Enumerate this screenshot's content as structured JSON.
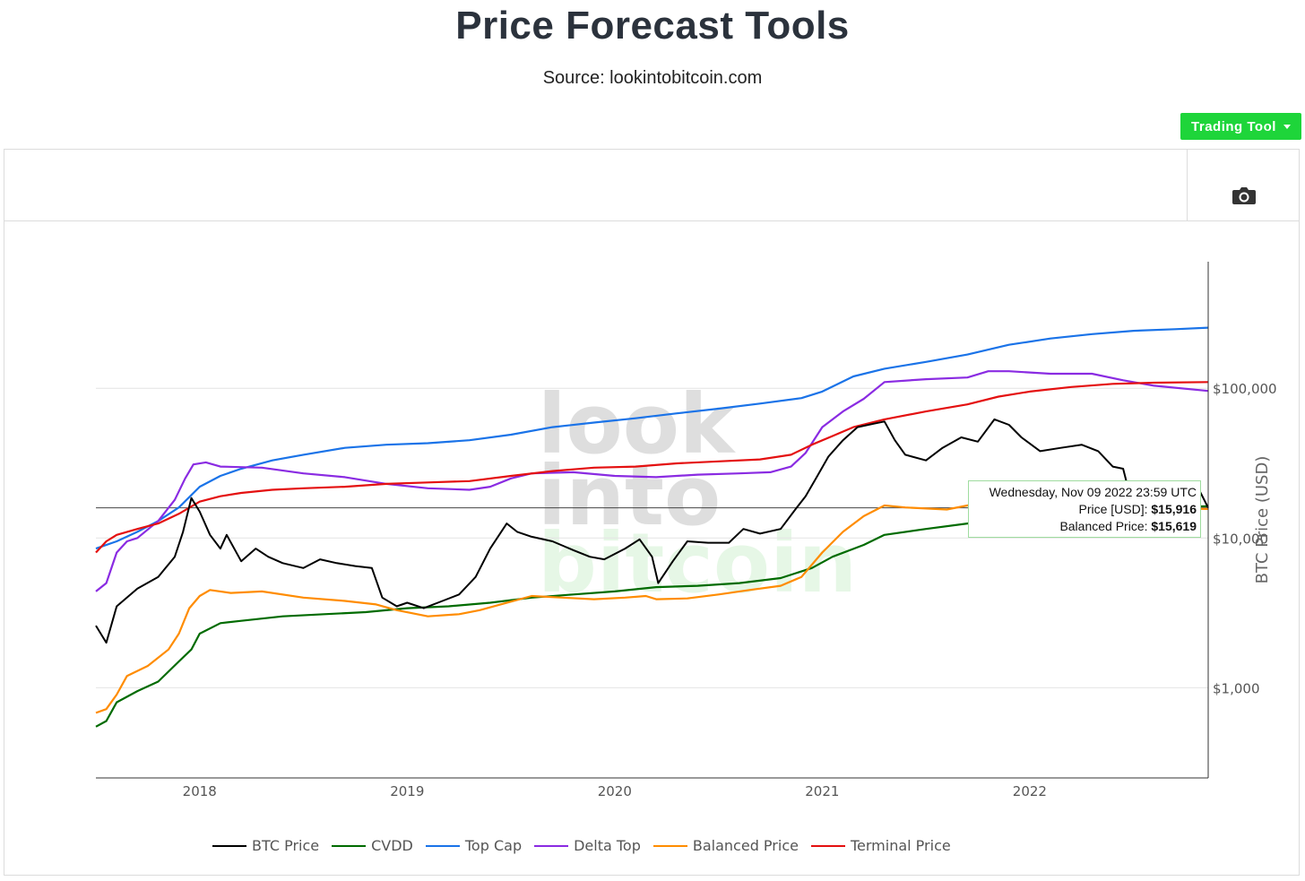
{
  "header": {
    "title": "Price Forecast Tools",
    "subtitle": "Source: lookintobitcoin.com"
  },
  "toolbar": {
    "trading_tool_label": "Trading Tool",
    "camera_icon": "camera-icon"
  },
  "watermark": [
    "look",
    "into",
    "bitcoin"
  ],
  "tooltip": {
    "date": "Wednesday, Nov 09 2022 23:59 UTC",
    "price_label": "Price [USD]:",
    "price_value": "$15,916",
    "balanced_label": "Balanced Price:",
    "balanced_value": "$15,619"
  },
  "chart_data": {
    "type": "line",
    "ylabel": "BTC Price (USD)",
    "yscale": "log",
    "ylim": [
      250,
      700000
    ],
    "xlim": [
      2017.5,
      2022.86
    ],
    "xticks": [
      {
        "value": 2018,
        "label": "2018"
      },
      {
        "value": 2019,
        "label": "2019"
      },
      {
        "value": 2020,
        "label": "2020"
      },
      {
        "value": 2021,
        "label": "2021"
      },
      {
        "value": 2022,
        "label": "2022"
      }
    ],
    "yticks": [
      {
        "value": 1000,
        "label": "$1,000"
      },
      {
        "value": 10000,
        "label": "$10,000"
      },
      {
        "value": 100000,
        "label": "$100,000"
      }
    ],
    "crosshair_y": 15916,
    "series": [
      {
        "name": "BTC Price",
        "color": "#000000",
        "points": [
          [
            2017.5,
            2600
          ],
          [
            2017.55,
            2000
          ],
          [
            2017.6,
            3500
          ],
          [
            2017.7,
            4600
          ],
          [
            2017.8,
            5500
          ],
          [
            2017.88,
            7500
          ],
          [
            2017.92,
            11000
          ],
          [
            2017.96,
            18500
          ],
          [
            2018.0,
            15000
          ],
          [
            2018.05,
            10500
          ],
          [
            2018.1,
            8500
          ],
          [
            2018.13,
            10500
          ],
          [
            2018.2,
            7000
          ],
          [
            2018.27,
            8500
          ],
          [
            2018.33,
            7500
          ],
          [
            2018.4,
            6800
          ],
          [
            2018.5,
            6300
          ],
          [
            2018.58,
            7200
          ],
          [
            2018.66,
            6800
          ],
          [
            2018.75,
            6500
          ],
          [
            2018.83,
            6300
          ],
          [
            2018.88,
            4000
          ],
          [
            2018.95,
            3500
          ],
          [
            2019.0,
            3700
          ],
          [
            2019.08,
            3400
          ],
          [
            2019.17,
            3800
          ],
          [
            2019.25,
            4200
          ],
          [
            2019.33,
            5500
          ],
          [
            2019.4,
            8500
          ],
          [
            2019.48,
            12500
          ],
          [
            2019.53,
            11000
          ],
          [
            2019.6,
            10200
          ],
          [
            2019.7,
            9500
          ],
          [
            2019.8,
            8300
          ],
          [
            2019.88,
            7500
          ],
          [
            2019.95,
            7200
          ],
          [
            2020.05,
            8500
          ],
          [
            2020.12,
            9800
          ],
          [
            2020.18,
            7500
          ],
          [
            2020.21,
            5000
          ],
          [
            2020.28,
            7000
          ],
          [
            2020.35,
            9500
          ],
          [
            2020.45,
            9300
          ],
          [
            2020.55,
            9300
          ],
          [
            2020.62,
            11500
          ],
          [
            2020.7,
            10700
          ],
          [
            2020.8,
            11500
          ],
          [
            2020.87,
            15500
          ],
          [
            2020.92,
            19000
          ],
          [
            2020.97,
            25000
          ],
          [
            2021.03,
            35000
          ],
          [
            2021.1,
            45000
          ],
          [
            2021.17,
            55000
          ],
          [
            2021.25,
            58000
          ],
          [
            2021.3,
            60000
          ],
          [
            2021.35,
            45000
          ],
          [
            2021.4,
            36000
          ],
          [
            2021.5,
            33000
          ],
          [
            2021.58,
            40000
          ],
          [
            2021.67,
            47000
          ],
          [
            2021.75,
            44000
          ],
          [
            2021.83,
            62000
          ],
          [
            2021.9,
            57000
          ],
          [
            2021.96,
            47000
          ],
          [
            2022.05,
            38000
          ],
          [
            2022.15,
            40000
          ],
          [
            2022.25,
            42000
          ],
          [
            2022.33,
            38000
          ],
          [
            2022.4,
            30000
          ],
          [
            2022.45,
            29000
          ],
          [
            2022.48,
            20000
          ],
          [
            2022.55,
            22000
          ],
          [
            2022.65,
            21000
          ],
          [
            2022.75,
            19500
          ],
          [
            2022.82,
            20500
          ],
          [
            2022.86,
            15916
          ]
        ]
      },
      {
        "name": "CVDD",
        "color": "#006b00",
        "points": [
          [
            2017.5,
            550
          ],
          [
            2017.55,
            600
          ],
          [
            2017.6,
            800
          ],
          [
            2017.7,
            950
          ],
          [
            2017.8,
            1100
          ],
          [
            2017.9,
            1500
          ],
          [
            2017.96,
            1800
          ],
          [
            2018.0,
            2300
          ],
          [
            2018.1,
            2700
          ],
          [
            2018.2,
            2800
          ],
          [
            2018.4,
            3000
          ],
          [
            2018.6,
            3100
          ],
          [
            2018.8,
            3200
          ],
          [
            2019.0,
            3400
          ],
          [
            2019.2,
            3500
          ],
          [
            2019.4,
            3700
          ],
          [
            2019.6,
            4000
          ],
          [
            2019.8,
            4200
          ],
          [
            2020.0,
            4400
          ],
          [
            2020.2,
            4700
          ],
          [
            2020.4,
            4800
          ],
          [
            2020.6,
            5000
          ],
          [
            2020.8,
            5400
          ],
          [
            2020.95,
            6300
          ],
          [
            2021.05,
            7500
          ],
          [
            2021.2,
            9000
          ],
          [
            2021.3,
            10500
          ],
          [
            2021.5,
            11500
          ],
          [
            2021.7,
            12500
          ],
          [
            2021.9,
            13500
          ],
          [
            2022.1,
            14500
          ],
          [
            2022.3,
            15000
          ],
          [
            2022.5,
            16000
          ],
          [
            2022.86,
            16300
          ]
        ]
      },
      {
        "name": "Top Cap",
        "color": "#1a73e8",
        "points": [
          [
            2017.5,
            8500
          ],
          [
            2017.6,
            9500
          ],
          [
            2017.7,
            11000
          ],
          [
            2017.8,
            13000
          ],
          [
            2017.9,
            16000
          ],
          [
            2018.0,
            22000
          ],
          [
            2018.1,
            26000
          ],
          [
            2018.2,
            29000
          ],
          [
            2018.35,
            33000
          ],
          [
            2018.5,
            36000
          ],
          [
            2018.7,
            40000
          ],
          [
            2018.9,
            42000
          ],
          [
            2019.1,
            43000
          ],
          [
            2019.3,
            45000
          ],
          [
            2019.5,
            49000
          ],
          [
            2019.7,
            55000
          ],
          [
            2019.9,
            59000
          ],
          [
            2020.1,
            63000
          ],
          [
            2020.3,
            68000
          ],
          [
            2020.5,
            73000
          ],
          [
            2020.7,
            79000
          ],
          [
            2020.9,
            86000
          ],
          [
            2021.0,
            95000
          ],
          [
            2021.15,
            120000
          ],
          [
            2021.3,
            135000
          ],
          [
            2021.5,
            150000
          ],
          [
            2021.7,
            168000
          ],
          [
            2021.9,
            195000
          ],
          [
            2022.1,
            215000
          ],
          [
            2022.3,
            230000
          ],
          [
            2022.5,
            242000
          ],
          [
            2022.7,
            248000
          ],
          [
            2022.86,
            254000
          ]
        ]
      },
      {
        "name": "Delta Top",
        "color": "#8a2be2",
        "points": [
          [
            2017.5,
            4400
          ],
          [
            2017.55,
            5000
          ],
          [
            2017.6,
            8000
          ],
          [
            2017.65,
            9500
          ],
          [
            2017.7,
            10000
          ],
          [
            2017.8,
            13000
          ],
          [
            2017.88,
            18000
          ],
          [
            2017.93,
            25000
          ],
          [
            2017.97,
            31000
          ],
          [
            2018.03,
            32000
          ],
          [
            2018.1,
            30000
          ],
          [
            2018.3,
            29500
          ],
          [
            2018.5,
            27000
          ],
          [
            2018.7,
            25500
          ],
          [
            2018.9,
            23000
          ],
          [
            2019.1,
            21500
          ],
          [
            2019.3,
            21000
          ],
          [
            2019.4,
            22000
          ],
          [
            2019.5,
            25000
          ],
          [
            2019.6,
            27000
          ],
          [
            2019.8,
            27500
          ],
          [
            2020.0,
            26000
          ],
          [
            2020.2,
            25500
          ],
          [
            2020.4,
            26500
          ],
          [
            2020.6,
            27000
          ],
          [
            2020.75,
            27500
          ],
          [
            2020.85,
            30000
          ],
          [
            2020.92,
            37000
          ],
          [
            2021.0,
            55000
          ],
          [
            2021.1,
            70000
          ],
          [
            2021.2,
            85000
          ],
          [
            2021.3,
            110000
          ],
          [
            2021.5,
            115000
          ],
          [
            2021.7,
            118000
          ],
          [
            2021.8,
            130000
          ],
          [
            2021.9,
            130000
          ],
          [
            2022.1,
            125000
          ],
          [
            2022.3,
            125000
          ],
          [
            2022.45,
            113000
          ],
          [
            2022.6,
            104000
          ],
          [
            2022.86,
            96000
          ]
        ]
      },
      {
        "name": "Balanced Price",
        "color": "#ff8c00",
        "points": [
          [
            2017.5,
            680
          ],
          [
            2017.55,
            720
          ],
          [
            2017.6,
            900
          ],
          [
            2017.65,
            1200
          ],
          [
            2017.75,
            1400
          ],
          [
            2017.85,
            1800
          ],
          [
            2017.9,
            2300
          ],
          [
            2017.95,
            3400
          ],
          [
            2018.0,
            4100
          ],
          [
            2018.05,
            4500
          ],
          [
            2018.15,
            4300
          ],
          [
            2018.3,
            4400
          ],
          [
            2018.5,
            4000
          ],
          [
            2018.7,
            3800
          ],
          [
            2018.85,
            3600
          ],
          [
            2018.95,
            3300
          ],
          [
            2019.1,
            3000
          ],
          [
            2019.25,
            3100
          ],
          [
            2019.35,
            3300
          ],
          [
            2019.45,
            3600
          ],
          [
            2019.6,
            4100
          ],
          [
            2019.75,
            4000
          ],
          [
            2019.9,
            3900
          ],
          [
            2020.05,
            4000
          ],
          [
            2020.15,
            4100
          ],
          [
            2020.2,
            3900
          ],
          [
            2020.35,
            3950
          ],
          [
            2020.5,
            4200
          ],
          [
            2020.65,
            4500
          ],
          [
            2020.8,
            4800
          ],
          [
            2020.9,
            5500
          ],
          [
            2021.0,
            8000
          ],
          [
            2021.1,
            11000
          ],
          [
            2021.2,
            14000
          ],
          [
            2021.3,
            16500
          ],
          [
            2021.4,
            16000
          ],
          [
            2021.6,
            15500
          ],
          [
            2021.7,
            16500
          ],
          [
            2021.8,
            17500
          ],
          [
            2022.0,
            17500
          ],
          [
            2022.2,
            17000
          ],
          [
            2022.4,
            16500
          ],
          [
            2022.6,
            15800
          ],
          [
            2022.86,
            15619
          ]
        ]
      },
      {
        "name": "Terminal Price",
        "color": "#e41010",
        "points": [
          [
            2017.5,
            8000
          ],
          [
            2017.55,
            9500
          ],
          [
            2017.6,
            10500
          ],
          [
            2017.7,
            11500
          ],
          [
            2017.8,
            12500
          ],
          [
            2017.9,
            14500
          ],
          [
            2018.0,
            17500
          ],
          [
            2018.1,
            19000
          ],
          [
            2018.2,
            20000
          ],
          [
            2018.35,
            21000
          ],
          [
            2018.5,
            21500
          ],
          [
            2018.7,
            22000
          ],
          [
            2018.9,
            23000
          ],
          [
            2019.1,
            23500
          ],
          [
            2019.3,
            24000
          ],
          [
            2019.5,
            26000
          ],
          [
            2019.7,
            28000
          ],
          [
            2019.9,
            29500
          ],
          [
            2020.1,
            30000
          ],
          [
            2020.3,
            31500
          ],
          [
            2020.5,
            32500
          ],
          [
            2020.7,
            33500
          ],
          [
            2020.85,
            36000
          ],
          [
            2020.95,
            42000
          ],
          [
            2021.05,
            48000
          ],
          [
            2021.15,
            55000
          ],
          [
            2021.3,
            62000
          ],
          [
            2021.5,
            70000
          ],
          [
            2021.7,
            78000
          ],
          [
            2021.85,
            88000
          ],
          [
            2022.0,
            95000
          ],
          [
            2022.2,
            102000
          ],
          [
            2022.4,
            107000
          ],
          [
            2022.6,
            109000
          ],
          [
            2022.86,
            110000
          ]
        ]
      }
    ]
  }
}
